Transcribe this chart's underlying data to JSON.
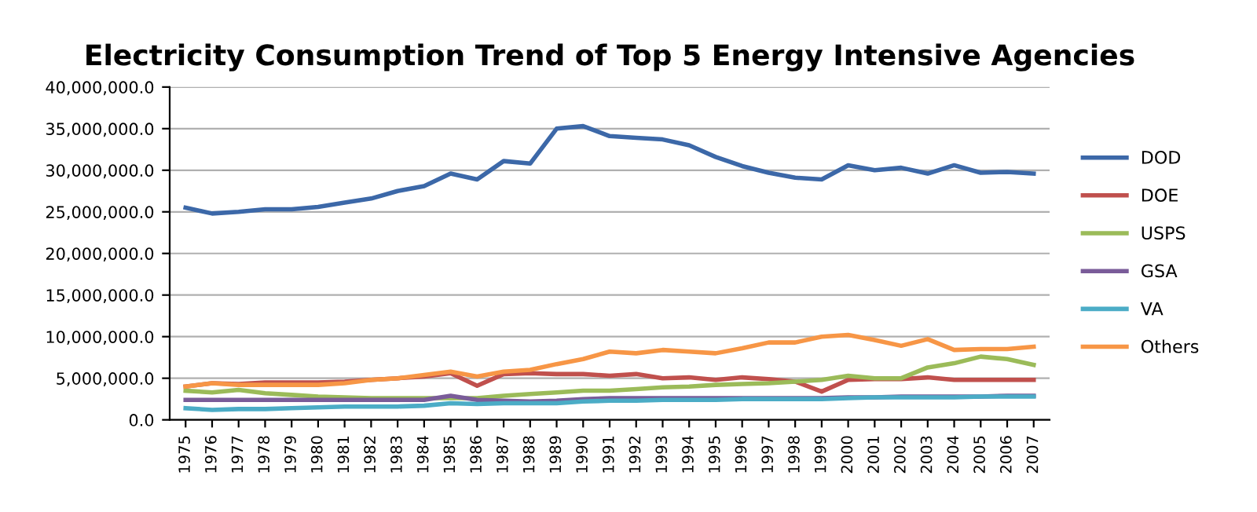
{
  "chart_data": {
    "type": "line",
    "title": "Electricity Consumption Trend of Top 5 Energy Intensive Agencies",
    "categories": [
      "1975",
      "1976",
      "1977",
      "1978",
      "1979",
      "1980",
      "1981",
      "1982",
      "1983",
      "1984",
      "1985",
      "1986",
      "1987",
      "1988",
      "1989",
      "1990",
      "1991",
      "1992",
      "1993",
      "1994",
      "1995",
      "1996",
      "1997",
      "1998",
      "1999",
      "2000",
      "2001",
      "2002",
      "2003",
      "2004",
      "2005",
      "2006",
      "2007"
    ],
    "series": [
      {
        "name": "DOD",
        "color": "#3c68a8",
        "values": [
          25500000,
          24800000,
          25000000,
          25300000,
          25300000,
          25600000,
          26100000,
          26600000,
          27500000,
          28100000,
          29600000,
          28900000,
          31100000,
          30800000,
          35000000,
          35300000,
          34100000,
          33900000,
          33700000,
          33000000,
          31600000,
          30500000,
          29700000,
          29100000,
          28900000,
          30600000,
          30000000,
          30300000,
          29600000,
          30600000,
          29700000,
          29800000,
          29600000
        ]
      },
      {
        "name": "DOE",
        "color": "#c0504d",
        "values": [
          4000000,
          4400000,
          4300000,
          4500000,
          4500000,
          4500000,
          4600000,
          4800000,
          5000000,
          5200000,
          5600000,
          4100000,
          5500000,
          5600000,
          5500000,
          5500000,
          5300000,
          5500000,
          5000000,
          5100000,
          4800000,
          5100000,
          4900000,
          4600000,
          3400000,
          4800000,
          4900000,
          4900000,
          5100000,
          4800000,
          4800000,
          4800000,
          4800000
        ]
      },
      {
        "name": "USPS",
        "color": "#9bbb59",
        "values": [
          3500000,
          3300000,
          3600000,
          3200000,
          3000000,
          2800000,
          2700000,
          2600000,
          2600000,
          2600000,
          2600000,
          2600000,
          2900000,
          3100000,
          3300000,
          3500000,
          3500000,
          3700000,
          3900000,
          4000000,
          4200000,
          4300000,
          4400000,
          4600000,
          4800000,
          5300000,
          5000000,
          5000000,
          6300000,
          6800000,
          7600000,
          7300000,
          6600000
        ]
      },
      {
        "name": "GSA",
        "color": "#7a5c99",
        "values": [
          2400000,
          2400000,
          2400000,
          2400000,
          2400000,
          2400000,
          2400000,
          2400000,
          2400000,
          2400000,
          2900000,
          2400000,
          2300000,
          2200000,
          2300000,
          2500000,
          2600000,
          2600000,
          2600000,
          2600000,
          2600000,
          2600000,
          2600000,
          2600000,
          2600000,
          2700000,
          2700000,
          2800000,
          2800000,
          2800000,
          2800000,
          2900000,
          2900000
        ]
      },
      {
        "name": "VA",
        "color": "#4bacc6",
        "values": [
          1400000,
          1200000,
          1300000,
          1300000,
          1400000,
          1500000,
          1600000,
          1600000,
          1600000,
          1700000,
          2000000,
          1900000,
          2000000,
          2000000,
          2000000,
          2200000,
          2300000,
          2300000,
          2400000,
          2400000,
          2400000,
          2500000,
          2500000,
          2500000,
          2500000,
          2600000,
          2700000,
          2700000,
          2700000,
          2700000,
          2800000,
          2800000,
          2800000
        ]
      },
      {
        "name": "Others",
        "color": "#f79646",
        "values": [
          4000000,
          4400000,
          4200000,
          4200000,
          4200000,
          4200000,
          4400000,
          4800000,
          5000000,
          5400000,
          5800000,
          5200000,
          5800000,
          6000000,
          6700000,
          7300000,
          8200000,
          8000000,
          8400000,
          8200000,
          8000000,
          8600000,
          9300000,
          9300000,
          10000000,
          10200000,
          9600000,
          8900000,
          9700000,
          8400000,
          8500000,
          8500000,
          8800000
        ]
      }
    ],
    "ylim": [
      0,
      40000000
    ],
    "yticks": [
      {
        "value": 0,
        "label": "0.0"
      },
      {
        "value": 5000000,
        "label": "5,000,000.0"
      },
      {
        "value": 10000000,
        "label": "10,000,000.0"
      },
      {
        "value": 15000000,
        "label": "15,000,000.0"
      },
      {
        "value": 20000000,
        "label": "20,000,000.0"
      },
      {
        "value": 25000000,
        "label": "25,000,000.0"
      },
      {
        "value": 30000000,
        "label": "30,000,000.0"
      },
      {
        "value": 35000000,
        "label": "35,000,000.0"
      },
      {
        "value": 40000000,
        "label": "40,000,000.0"
      }
    ],
    "grid": "y",
    "legend": "right",
    "marker": "none",
    "line_style": "solid"
  }
}
